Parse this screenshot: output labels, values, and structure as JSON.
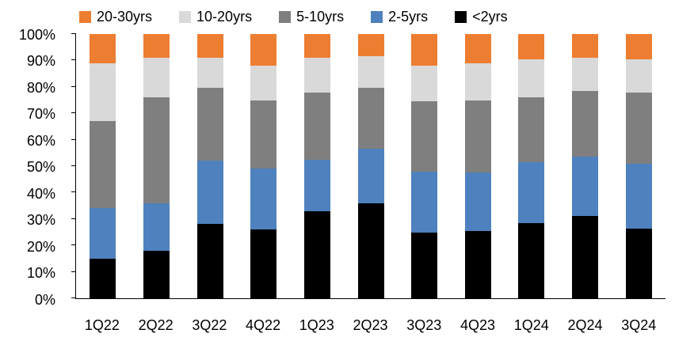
{
  "chart_data": {
    "type": "bar",
    "subtype": "stacked-100-percent",
    "title": "",
    "xlabel": "",
    "ylabel": "",
    "ylim": [
      0,
      100
    ],
    "grid": false,
    "legend_position": "top",
    "categories": [
      "1Q22",
      "2Q22",
      "3Q22",
      "4Q22",
      "1Q23",
      "2Q23",
      "3Q23",
      "4Q23",
      "1Q24",
      "2Q24",
      "3Q24"
    ],
    "y_ticks": [
      "0%",
      "10%",
      "20%",
      "30%",
      "40%",
      "50%",
      "60%",
      "70%",
      "80%",
      "90%",
      "100%"
    ],
    "series": [
      {
        "name": "<2yrs",
        "color": "#000000",
        "values": [
          15,
          18,
          28,
          26,
          33,
          36,
          25,
          25.5,
          28.5,
          31,
          26.5
        ]
      },
      {
        "name": "2-5yrs",
        "color": "#4E81BD",
        "values": [
          19,
          18,
          24,
          23,
          19.5,
          20.5,
          23,
          22,
          23,
          22.5,
          24.5
        ]
      },
      {
        "name": "5-10yrs",
        "color": "#7F7F7F",
        "values": [
          33,
          40,
          27.5,
          26,
          25.5,
          23,
          26.5,
          27.5,
          24.5,
          25,
          27
        ]
      },
      {
        "name": "10-20yrs",
        "color": "#D9D9D9",
        "values": [
          22,
          15,
          11.5,
          13,
          13,
          12,
          13.5,
          14,
          14.5,
          12.5,
          12.5
        ]
      },
      {
        "name": "20-30yrs",
        "color": "#ED7D31",
        "values": [
          11,
          9,
          9,
          12,
          9,
          8.5,
          12,
          11,
          9.5,
          9,
          9.5
        ]
      }
    ],
    "legend_order": [
      "20-30yrs",
      "10-20yrs",
      "5-10yrs",
      "2-5yrs",
      "<2yrs"
    ]
  }
}
